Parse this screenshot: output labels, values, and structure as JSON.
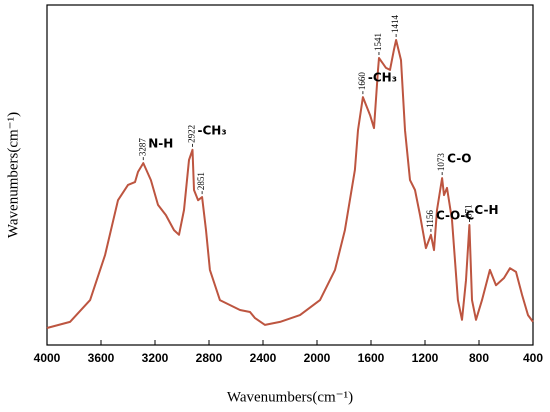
{
  "chart_data": {
    "type": "line",
    "xlabel": "Wavenumbers(cm⁻¹)",
    "ylabel": "Wavenumbers(cm⁻¹)",
    "xlim": [
      4000,
      400
    ],
    "xticks": [
      4000,
      3600,
      3200,
      2800,
      2400,
      2000,
      1600,
      1200,
      800,
      400
    ],
    "ylim": [
      0,
      100
    ],
    "color": "#bd5540",
    "x": [
      4000,
      3830,
      3681,
      3570,
      3474,
      3400,
      3348,
      3326,
      3287,
      3230,
      3178,
      3119,
      3059,
      3022,
      2985,
      2948,
      2922,
      2911,
      2881,
      2851,
      2822,
      2793,
      2719,
      2570,
      2496,
      2459,
      2385,
      2274,
      2126,
      1978,
      1867,
      1793,
      1719,
      1696,
      1660,
      1607,
      1578,
      1548,
      1541,
      1489,
      1459,
      1430,
      1414,
      1378,
      1348,
      1311,
      1274,
      1237,
      1193,
      1156,
      1133,
      1111,
      1073,
      1059,
      1037,
      1000,
      956,
      926,
      896,
      871,
      852,
      822,
      778,
      719,
      674,
      615,
      570,
      526,
      481,
      437,
      400
    ],
    "values": [
      5.0,
      6.8,
      13.2,
      26.5,
      42.6,
      47.1,
      47.9,
      50.9,
      53.5,
      48.5,
      41.2,
      38.2,
      33.8,
      32.4,
      39.7,
      54.4,
      57.4,
      45.6,
      42.6,
      43.5,
      33.8,
      22.1,
      13.2,
      10.3,
      9.7,
      7.9,
      5.9,
      6.8,
      8.8,
      13.2,
      22.1,
      33.8,
      51.5,
      63.2,
      72.9,
      67.6,
      63.8,
      80.9,
      84.4,
      81.5,
      80.9,
      86.8,
      89.7,
      83.8,
      63.2,
      48.5,
      45.6,
      38.2,
      28.5,
      32.4,
      27.9,
      39.7,
      49.1,
      44.1,
      46.2,
      36.8,
      13.2,
      7.4,
      19.1,
      35.3,
      13.2,
      7.4,
      13.2,
      22.1,
      17.6,
      19.7,
      22.6,
      21.5,
      14.7,
      8.8,
      6.8
    ],
    "annotations": [
      {
        "x": 3287,
        "group": "N-H"
      },
      {
        "x": 2922,
        "group": "-CH₃"
      },
      {
        "x": 2851
      },
      {
        "x": 1660,
        "group": "-CH₃"
      },
      {
        "x": 1541
      },
      {
        "x": 1414
      },
      {
        "x": 1156,
        "group": "C-O-C"
      },
      {
        "x": 1073,
        "group": "C-O"
      },
      {
        "x": 871,
        "group": "C-H"
      }
    ]
  }
}
